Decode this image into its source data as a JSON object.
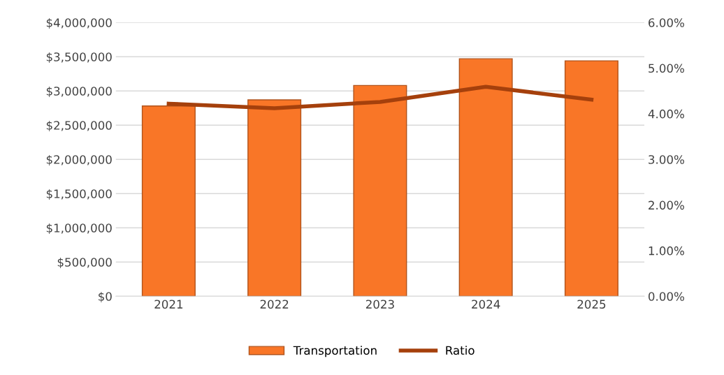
{
  "chart_data": {
    "type": "bar",
    "categories": [
      "2021",
      "2022",
      "2023",
      "2024",
      "2025"
    ],
    "series": [
      {
        "name": "Transportation",
        "color": "#f97627",
        "values": [
          2780000,
          2870000,
          3080000,
          3470000,
          3440000
        ]
      },
      {
        "name": "Ratio",
        "type": "line",
        "axis": "y2",
        "color": "#a5400c",
        "values": [
          4.22,
          4.12,
          4.26,
          4.59,
          4.31
        ]
      }
    ],
    "ylim": [
      0,
      4000000
    ],
    "yticks": [
      {
        "value": 0,
        "label": "$0"
      },
      {
        "value": 500000,
        "label": "$500,000"
      },
      {
        "value": 1000000,
        "label": "$1,000,000"
      },
      {
        "value": 1500000,
        "label": "$1,500,000"
      },
      {
        "value": 2000000,
        "label": "$2,000,000"
      },
      {
        "value": 2500000,
        "label": "$2,500,000"
      },
      {
        "value": 3000000,
        "label": "$3,000,000"
      },
      {
        "value": 3500000,
        "label": "$3,500,000"
      },
      {
        "value": 4000000,
        "label": "$4,000,000"
      }
    ],
    "y2lim": [
      0,
      6
    ],
    "y2ticks": [
      {
        "value": 0,
        "label": "0.00%"
      },
      {
        "value": 1,
        "label": "1.00%"
      },
      {
        "value": 2,
        "label": "2.00%"
      },
      {
        "value": 3,
        "label": "3.00%"
      },
      {
        "value": 4,
        "label": "4.00%"
      },
      {
        "value": 5,
        "label": "5.00%"
      },
      {
        "value": 6,
        "label": "6.00%"
      }
    ],
    "grid": "y",
    "legend": "bottom"
  }
}
